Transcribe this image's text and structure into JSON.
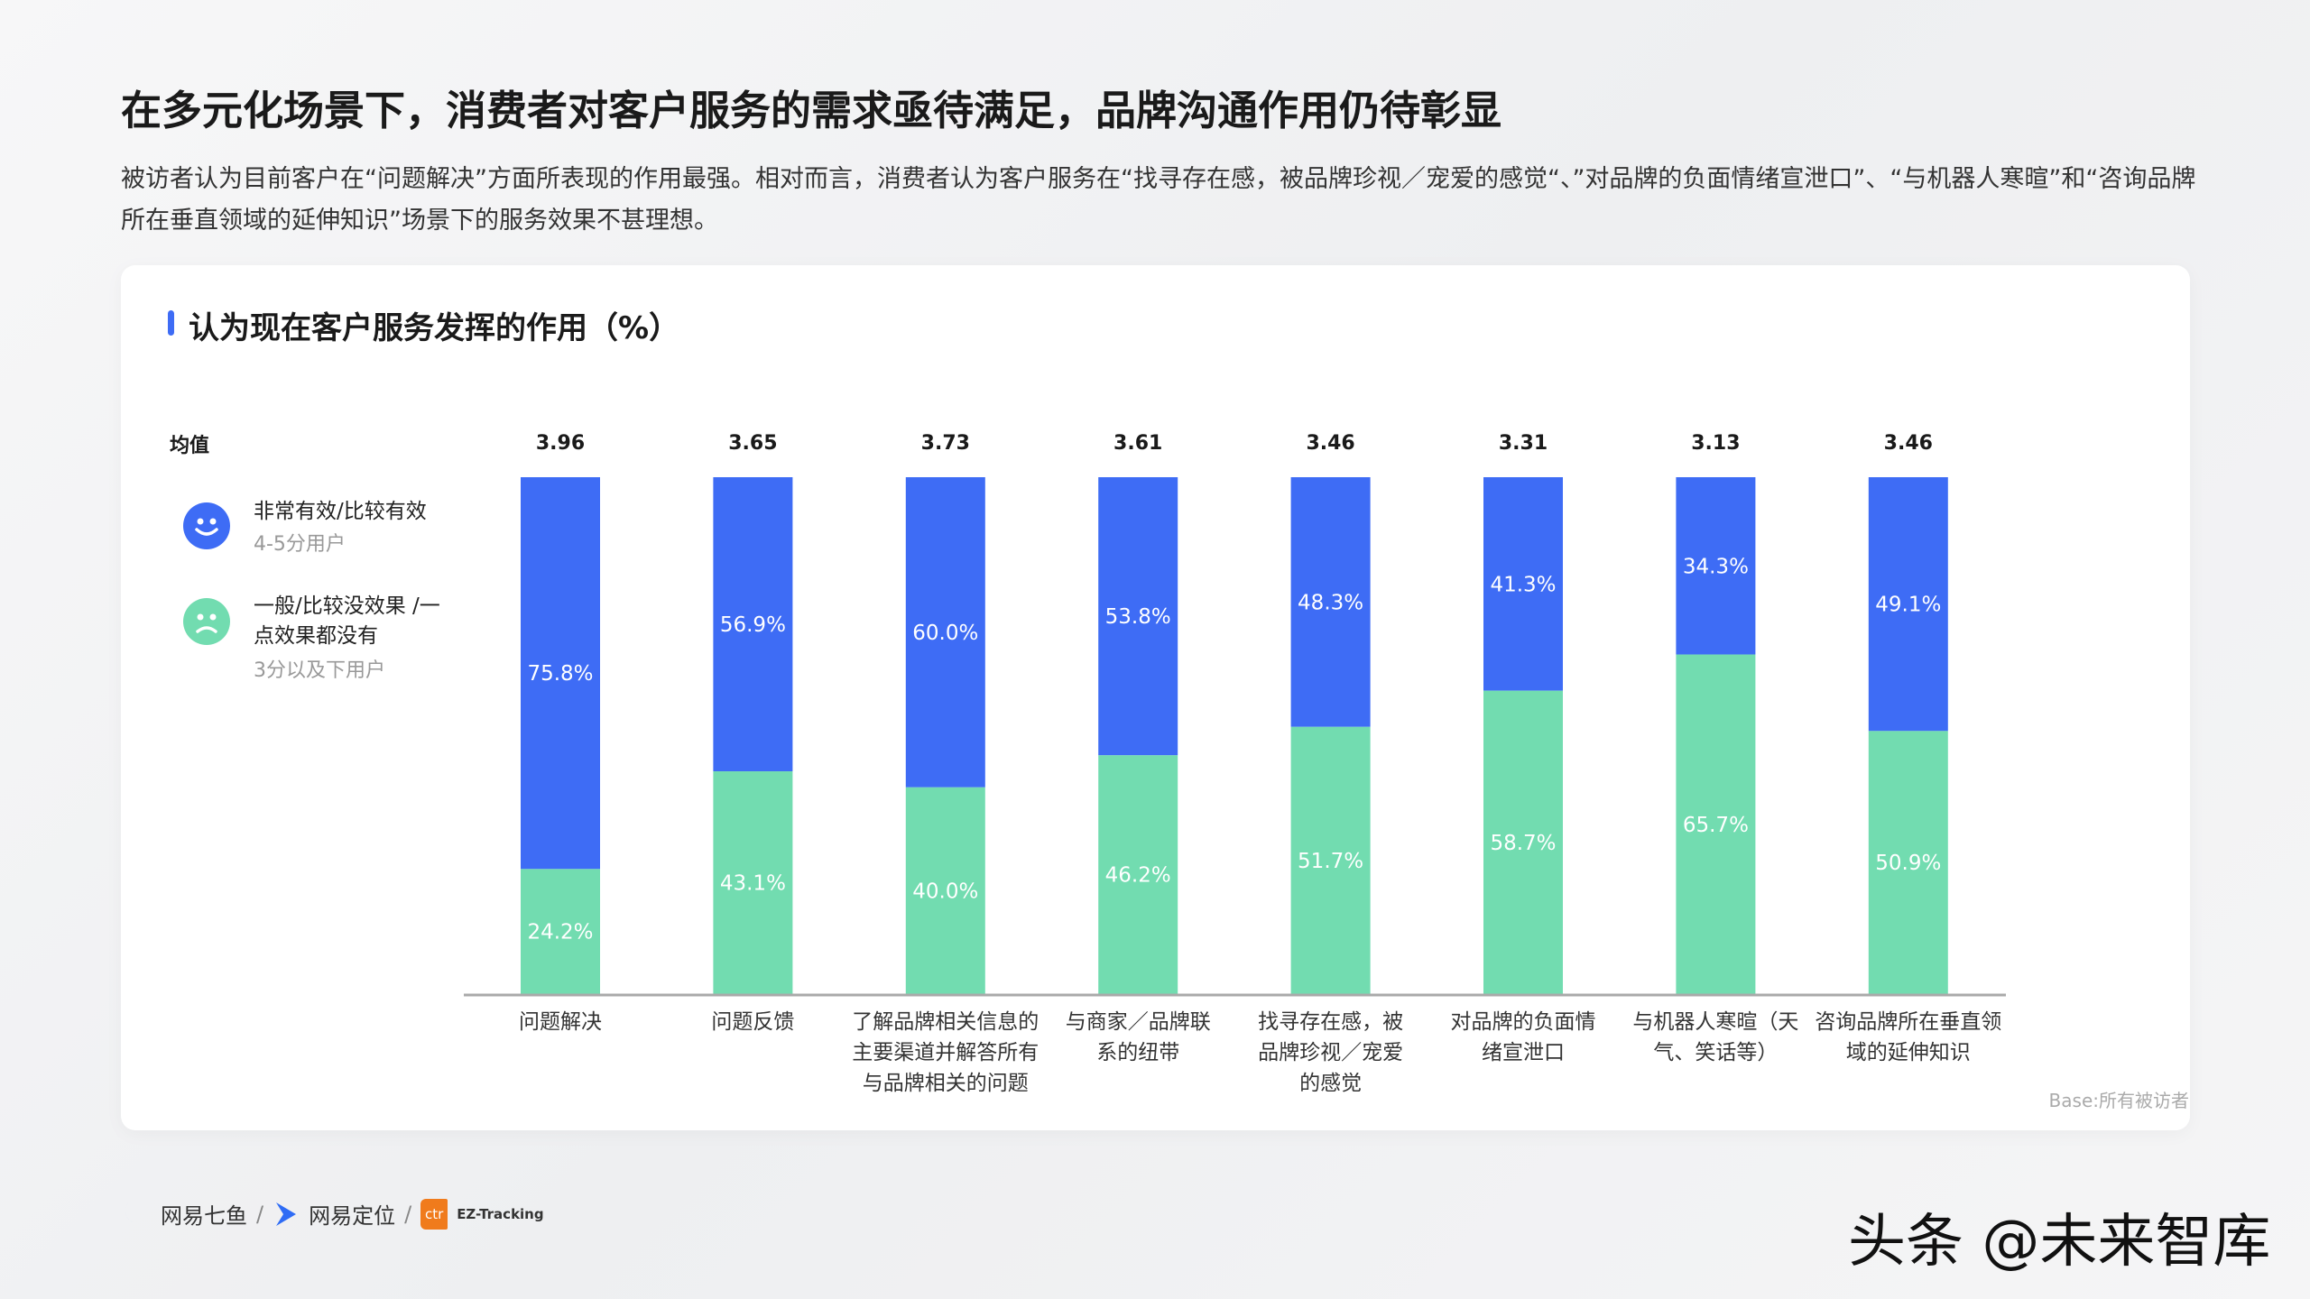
{
  "header": {
    "title": "在多元化场景下，消费者对客户服务的需求亟待满足，品牌沟通作用仍待彰显",
    "description": "被访者认为目前客户在“问题解决”方面所表现的作用最强。相对而言，消费者认为客户服务在“找寻存在感，被品牌珍视／宠爱的感觉“、”对品牌的负面情绪宣泄口”、“与机器人寒暄”和“咨询品牌所在垂直领域的延伸知识”场景下的服务效果不甚理想。"
  },
  "legend": {
    "mean_label": "均值",
    "items": [
      {
        "label": "非常有效/比较有效",
        "sub": "4-5分用户",
        "color": "#3e6cf5",
        "icon": "smile-face-icon"
      },
      {
        "label_line1": "一般/比较没效果 /一",
        "label_line2": "点效果都没有",
        "sub": "3分以及下用户",
        "color": "#72dcb0",
        "icon": "sad-face-icon"
      }
    ]
  },
  "chart_data": {
    "type": "bar",
    "stacked": true,
    "title": "认为现在客户服务发挥的作用（%）",
    "ylim": [
      0,
      100
    ],
    "categories": [
      [
        "问题解决"
      ],
      [
        "问题反馈"
      ],
      [
        "了解品牌相关信息的",
        "主要渠道并解答所有",
        "与品牌相关的问题"
      ],
      [
        "与商家／品牌联",
        "系的纽带"
      ],
      [
        "找寻存在感，被",
        "品牌珍视／宠爱",
        "的感觉"
      ],
      [
        "对品牌的负面情",
        "绪宣泄口"
      ],
      [
        "与机器人寒暄（天",
        "气、笑话等）"
      ],
      [
        "咨询品牌所在垂直领",
        "域的延伸知识"
      ]
    ],
    "means": [
      "3.96",
      "3.65",
      "3.73",
      "3.61",
      "3.46",
      "3.31",
      "3.13",
      "3.46"
    ],
    "series": [
      {
        "name": "非常有效/比较有效",
        "color": "#3e6cf5",
        "values": [
          75.8,
          56.9,
          60.0,
          53.8,
          48.3,
          41.3,
          34.3,
          49.1
        ]
      },
      {
        "name": "一般/比较没效果 /一点效果都没有",
        "color": "#72dcb0",
        "values": [
          24.2,
          43.1,
          40.0,
          46.2,
          51.7,
          58.7,
          65.7,
          50.9
        ]
      }
    ],
    "grid": false,
    "legend_position": "left"
  },
  "base_note": "Base:所有被访者",
  "footer": {
    "logo1": "网易七鱼",
    "sep": "/",
    "logo2": "网易定位",
    "logo3": "EZ-Tracking"
  },
  "watermark": "头条 @未来智库"
}
